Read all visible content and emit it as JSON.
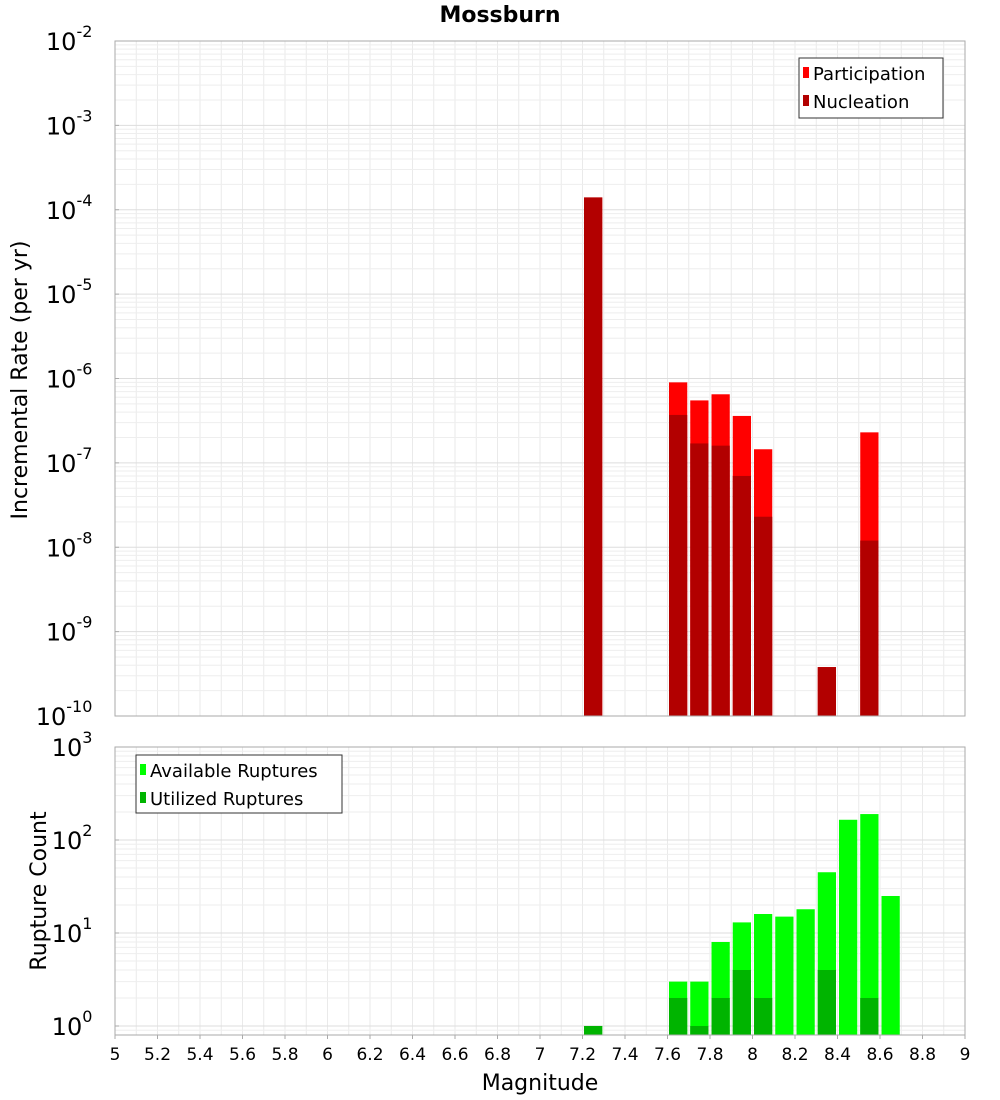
{
  "chart_data": [
    {
      "type": "bar",
      "title": "Mossburn",
      "ylabel": "Incremental Rate (per yr)",
      "yscale": "log",
      "ylim": [
        1e-10,
        0.01
      ],
      "xlim": [
        5,
        9
      ],
      "x": [
        7.25,
        7.65,
        7.75,
        7.85,
        7.95,
        8.05,
        8.35,
        8.55
      ],
      "series": [
        {
          "name": "Participation",
          "color": "#ff0000",
          "values": [
            0.00014,
            9e-07,
            5.5e-07,
            6.5e-07,
            3.6e-07,
            1.45e-07,
            3.8e-10,
            2.3e-07
          ]
        },
        {
          "name": "Nucleation",
          "color": "#b20000",
          "values": [
            0.00014,
            3.7e-07,
            1.7e-07,
            1.6e-07,
            7e-08,
            2.3e-08,
            3.8e-10,
            1.2e-08
          ]
        }
      ],
      "legend": "top-right",
      "grid": true
    },
    {
      "type": "bar",
      "xlabel": "Magnitude",
      "ylabel": "Rupture Count",
      "yscale": "log",
      "ylim": [
        0.8,
        1000
      ],
      "xlim": [
        5,
        9
      ],
      "x": [
        7.25,
        7.65,
        7.75,
        7.85,
        7.95,
        8.05,
        8.15,
        8.25,
        8.35,
        8.45,
        8.55,
        8.65
      ],
      "series": [
        {
          "name": "Available Ruptures",
          "color": "#00ff00",
          "values": [
            1,
            3,
            3,
            8,
            13,
            16,
            15,
            18,
            45,
            165,
            190,
            25
          ]
        },
        {
          "name": "Utilized Ruptures",
          "color": "#00b400",
          "values": [
            1,
            2,
            1,
            2,
            4,
            2,
            0,
            0,
            4,
            0,
            2,
            0
          ]
        }
      ],
      "legend": "top-left",
      "grid": true
    }
  ],
  "top_yticks": [
    {
      "base": "10",
      "exp": "-2"
    },
    {
      "base": "10",
      "exp": "-3"
    },
    {
      "base": "10",
      "exp": "-4"
    },
    {
      "base": "10",
      "exp": "-5"
    },
    {
      "base": "10",
      "exp": "-6"
    },
    {
      "base": "10",
      "exp": "-7"
    },
    {
      "base": "10",
      "exp": "-8"
    },
    {
      "base": "10",
      "exp": "-9"
    },
    {
      "base": "10",
      "exp": "-10"
    }
  ],
  "bottom_yticks": [
    {
      "base": "10",
      "exp": "3"
    },
    {
      "base": "10",
      "exp": "2"
    },
    {
      "base": "10",
      "exp": "1"
    },
    {
      "base": "10",
      "exp": "0"
    }
  ],
  "xticks": [
    "5",
    "5.2",
    "5.4",
    "5.6",
    "5.8",
    "6",
    "6.2",
    "6.4",
    "6.6",
    "6.8",
    "7",
    "7.2",
    "7.4",
    "7.6",
    "7.8",
    "8",
    "8.2",
    "8.4",
    "8.6",
    "8.8",
    "9"
  ]
}
